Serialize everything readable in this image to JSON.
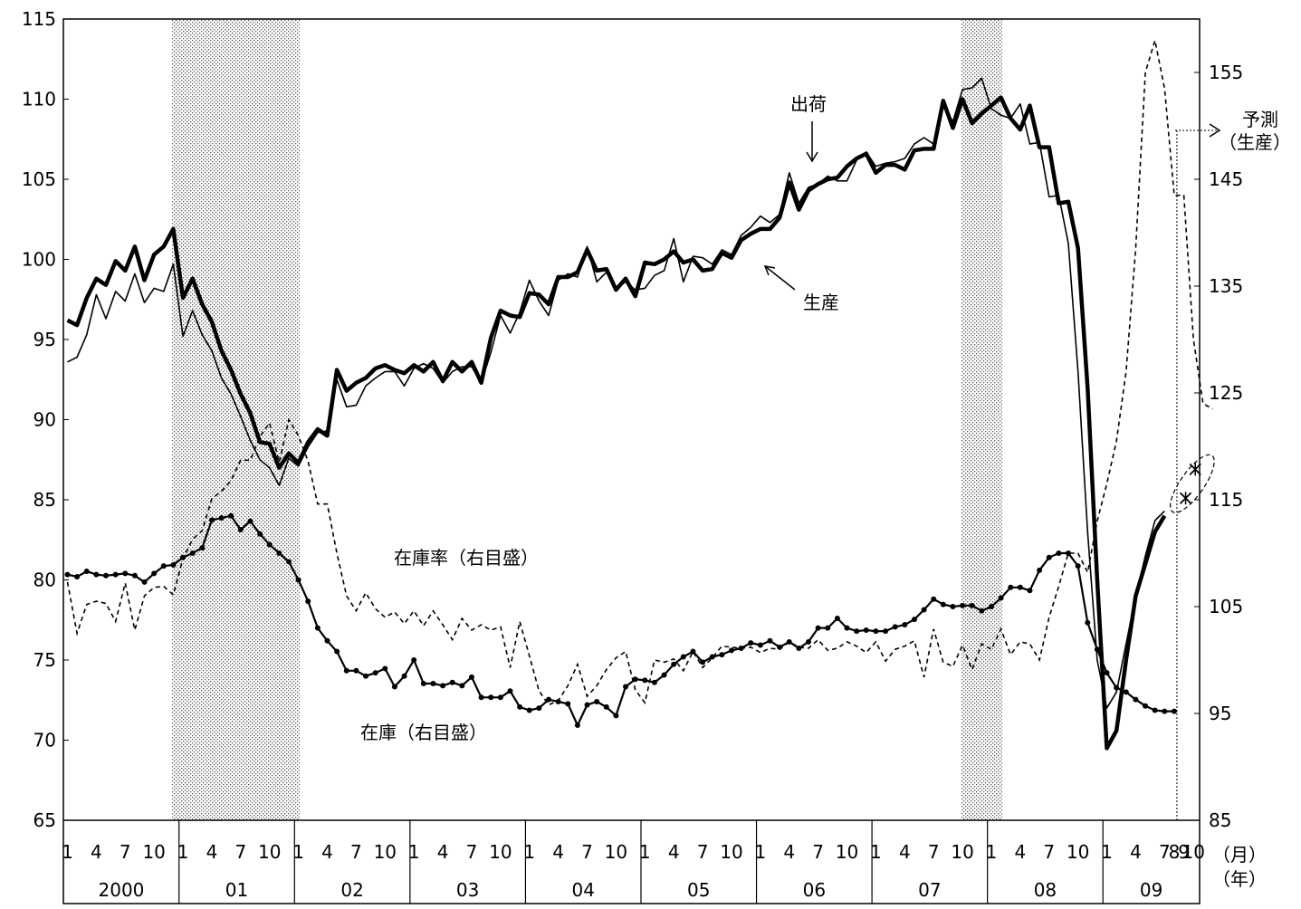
{
  "chart_data": {
    "type": "line",
    "title": "",
    "annotations": {
      "shipments": "出荷",
      "production": "生産",
      "inventory_ratio": "在庫率（右目盛）",
      "inventory": "在庫（右目盛）",
      "forecast": "予測",
      "forecast_sub": "（生産）"
    },
    "left_axis": {
      "min": 65,
      "max": 115,
      "ticks": [
        "115",
        "110",
        "105",
        "100",
        "95",
        "90",
        "85",
        "80",
        "75",
        "70",
        "65"
      ]
    },
    "right_axis": {
      "min": 85,
      "max": 160,
      "ticks": [
        "155",
        "145",
        "135",
        "125",
        "115",
        "105",
        "95",
        "85"
      ]
    },
    "x_axis": {
      "month_ticks": [
        "1",
        "4",
        "7",
        "10"
      ],
      "last_year_month_ticks": [
        "1",
        "4",
        "7",
        "8",
        "9",
        "10"
      ],
      "month_unit": "（月）",
      "year_unit": "（年）",
      "years": [
        "2000",
        "01",
        "02",
        "03",
        "04",
        "05",
        "06",
        "07",
        "08",
        "09"
      ],
      "start": "2000-01",
      "end": "2009-10"
    },
    "shaded_periods": [
      {
        "from": "2000-12",
        "to": "2002-01"
      },
      {
        "from": "2007-10",
        "to": "2008-02"
      }
    ],
    "series": [
      {
        "key": "production",
        "axis": "left",
        "style": "thick",
        "start": "2000-01",
        "values": [
          96.2,
          95.9,
          97.6,
          98.8,
          98.4,
          99.9,
          99.3,
          100.8,
          98.7,
          100.3,
          100.8,
          101.9,
          97.6,
          98.8,
          97.2,
          96.1,
          94.3,
          93.1,
          91.6,
          90.4,
          88.6,
          88.5,
          87.0,
          87.9,
          87.3,
          88.6,
          89.4,
          89.0,
          93.1,
          91.8,
          92.3,
          92.6,
          93.2,
          93.4,
          93.1,
          92.9,
          93.4,
          93.0,
          93.6,
          92.4,
          93.6,
          93.0,
          93.6,
          92.3,
          95.1,
          96.8,
          96.5,
          96.4,
          97.9,
          97.8,
          97.2,
          98.9,
          98.9,
          99.2,
          100.6,
          99.3,
          99.4,
          98.1,
          98.8,
          97.7,
          99.8,
          99.7,
          100.0,
          100.5,
          99.8,
          100.0,
          99.3,
          99.4,
          100.4,
          100.1,
          101.2,
          101.6,
          101.9,
          101.9,
          102.6,
          104.8,
          103.1,
          104.3,
          104.7,
          105.0,
          105.1,
          105.8,
          106.3,
          106.6,
          105.4,
          105.9,
          105.9,
          105.6,
          106.8,
          106.9,
          106.9,
          109.9,
          108.2,
          110.0,
          108.5,
          109.1,
          109.6,
          110.1,
          108.8,
          108.1,
          109.6,
          107.0,
          107.0,
          103.5,
          103.6,
          100.7,
          92.0,
          80.0,
          69.5,
          70.6,
          75.0,
          79.0,
          81.0,
          83.0,
          84.0
        ],
        "forecast": [
          {
            "x": "2009-09",
            "value": 85.1
          },
          {
            "x": "2009-10",
            "value": 86.9
          }
        ]
      },
      {
        "key": "shipments",
        "axis": "left",
        "style": "thin",
        "start": "2000-01",
        "values": [
          93.6,
          93.9,
          95.3,
          97.8,
          96.3,
          98.0,
          97.4,
          99.1,
          97.3,
          98.2,
          98.0,
          99.7,
          95.2,
          96.8,
          95.3,
          94.3,
          92.6,
          91.6,
          90.2,
          88.7,
          87.5,
          87.0,
          85.9,
          87.6,
          87.1,
          88.3,
          89.2,
          89.3,
          92.5,
          90.8,
          90.9,
          92.1,
          92.6,
          93.0,
          93.0,
          92.1,
          93.2,
          93.5,
          93.2,
          92.3,
          93.0,
          93.3,
          93.3,
          92.3,
          94.2,
          96.5,
          95.4,
          96.7,
          98.7,
          97.4,
          96.5,
          98.7,
          99.1,
          98.9,
          100.8,
          98.6,
          99.2,
          98.2,
          98.6,
          98.1,
          98.2,
          99.0,
          99.3,
          101.3,
          98.6,
          100.2,
          100.1,
          99.7,
          100.6,
          100.3,
          101.5,
          102.0,
          102.7,
          102.3,
          102.8,
          105.4,
          103.5,
          104.5,
          104.7,
          105.2,
          104.9,
          104.9,
          106.2,
          106.7,
          105.8,
          106.0,
          106.1,
          106.3,
          107.2,
          107.6,
          107.2,
          109.6,
          108.6,
          110.6,
          110.7,
          111.3,
          109.4,
          109.0,
          108.8,
          109.7,
          107.2,
          107.3,
          103.9,
          104.0,
          101.0,
          93.0,
          83.0,
          75.0,
          72.0,
          73.0,
          76.0,
          79.0,
          81.5,
          83.7,
          84.3
        ]
      },
      {
        "key": "inventory",
        "axis": "right",
        "style": "markers",
        "start": "2000-01",
        "values": [
          108.0,
          107.8,
          108.3,
          108.0,
          107.9,
          108.0,
          108.1,
          107.9,
          107.3,
          108.1,
          108.8,
          108.9,
          109.6,
          110.0,
          110.5,
          113.1,
          113.3,
          113.5,
          112.2,
          113.0,
          111.8,
          110.8,
          110.0,
          109.2,
          107.5,
          105.5,
          103.0,
          101.8,
          100.8,
          99.0,
          99.0,
          98.5,
          98.8,
          99.2,
          97.5,
          98.5,
          100.0,
          97.8,
          97.8,
          97.6,
          97.9,
          97.6,
          98.4,
          96.5,
          96.5,
          96.5,
          97.1,
          95.6,
          95.3,
          95.5,
          96.3,
          96.1,
          95.9,
          93.9,
          95.8,
          96.1,
          95.6,
          94.8,
          97.5,
          98.2,
          98.1,
          97.9,
          98.6,
          99.6,
          100.3,
          100.8,
          99.8,
          100.3,
          100.5,
          100.9,
          101.1,
          101.6,
          101.4,
          101.8,
          101.2,
          101.7,
          101.1,
          101.7,
          103.0,
          103.0,
          103.9,
          103.0,
          102.7,
          102.8,
          102.7,
          102.7,
          103.1,
          103.3,
          103.8,
          104.7,
          105.7,
          105.2,
          105.0,
          105.1,
          105.1,
          104.6,
          105.0,
          105.8,
          106.8,
          106.8,
          106.5,
          108.4,
          109.6,
          110.0,
          110.0,
          108.8,
          103.5,
          101.0,
          98.8,
          97.4,
          97.0,
          96.3,
          95.7,
          95.3,
          95.2,
          95.2
        ]
      },
      {
        "key": "inventory_ratio",
        "axis": "right",
        "style": "dashed",
        "start": "2000-01",
        "values": [
          107.3,
          102.5,
          105.2,
          105.5,
          105.3,
          103.6,
          107.2,
          102.8,
          106.0,
          106.8,
          106.9,
          106.1,
          109.5,
          111.3,
          112.1,
          115.1,
          115.8,
          116.8,
          118.7,
          118.7,
          120.9,
          122.2,
          118.5,
          122.5,
          121.0,
          118.6,
          114.6,
          114.6,
          110.0,
          106.0,
          104.6,
          106.3,
          104.8,
          104.0,
          104.5,
          103.4,
          104.6,
          103.2,
          104.6,
          103.3,
          101.9,
          103.9,
          102.8,
          103.3,
          102.8,
          103.1,
          99.3,
          103.6,
          100.4,
          97.1,
          95.8,
          96.2,
          97.6,
          99.6,
          96.6,
          97.6,
          99.1,
          100.2,
          100.8,
          97.2,
          96.0,
          100.0,
          99.8,
          100.1,
          99.0,
          100.8,
          99.3,
          100.2,
          101.3,
          101.2,
          101.1,
          101.2,
          100.7,
          101.1,
          101.0,
          101.7,
          101.2,
          101.1,
          101.9,
          100.9,
          101.1,
          101.7,
          101.3,
          100.7,
          101.7,
          99.9,
          101.0,
          101.3,
          101.8,
          98.4,
          102.9,
          99.8,
          99.4,
          101.4,
          99.1,
          101.5,
          101.0,
          102.9,
          100.5,
          101.7,
          101.5,
          100.0,
          104.0,
          106.9,
          110.0,
          110.0,
          108.2,
          113.0,
          116.5,
          120.5,
          127.0,
          138.5,
          155.0,
          158.0,
          153.5,
          143.5,
          143.5,
          130.0,
          124.0,
          123.5
        ]
      }
    ]
  }
}
